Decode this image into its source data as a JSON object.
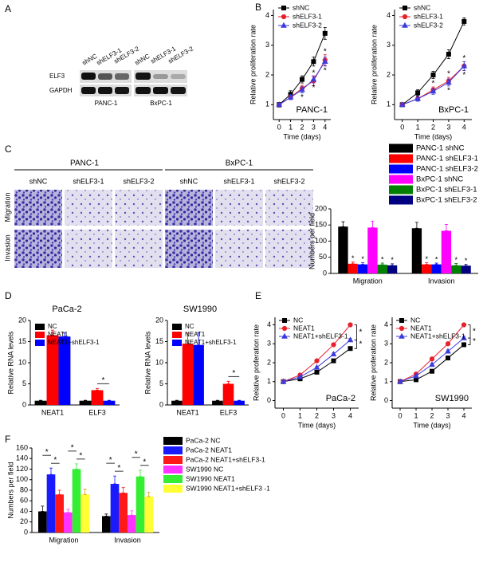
{
  "panel_labels": [
    "A",
    "B",
    "C",
    "D",
    "E",
    "F"
  ],
  "blot": {
    "lanes_1": [
      "shNC",
      "shELF3-1",
      "shELF3-2"
    ],
    "lanes_2": [
      "shNC",
      "shELF3-1",
      "shELF3-2"
    ],
    "rows": [
      "ELF3",
      "GAPDH"
    ],
    "cell_lines": [
      "PANC-1",
      "BxPC-1"
    ]
  },
  "micrographs": {
    "groups": [
      "PANC-1",
      "BxPC-1"
    ],
    "columns": [
      "shNC",
      "shELF3-1",
      "shELF3-2",
      "shNC",
      "shELF3-1",
      "shELF3-2"
    ],
    "rows": [
      "Migration",
      "Invasion"
    ]
  },
  "chart_data": [
    {
      "type": "line",
      "title": "PANC-1",
      "xlabel": "Time (days)",
      "ylabel": "Relative proliferation rate",
      "x": [
        0,
        1,
        2,
        3,
        4
      ],
      "xlim": [
        -0.5,
        4.5
      ],
      "xticks": [
        0,
        1,
        2,
        3,
        4
      ],
      "ylim": [
        0.5,
        4.2
      ],
      "yticks": [
        1,
        2,
        3,
        4
      ],
      "series": [
        {
          "name": "shNC",
          "color": "#000000",
          "marker": "square",
          "values": [
            1,
            1.35,
            1.85,
            2.45,
            3.4
          ],
          "errors": [
            0.08,
            0.12,
            0.12,
            0.15,
            0.2
          ]
        },
        {
          "name": "shELF3-1",
          "color": "#e8202a",
          "marker": "circle",
          "values": [
            1,
            1.25,
            1.55,
            1.8,
            2.5
          ],
          "errors": [
            0.06,
            0.08,
            0.1,
            0.15,
            0.18
          ],
          "significance": [
            null,
            null,
            "*",
            "*",
            "*"
          ]
        },
        {
          "name": "shELF3-2",
          "color": "#3b3bdf",
          "marker": "triangle",
          "values": [
            1,
            1.25,
            1.5,
            1.85,
            2.45
          ],
          "errors": [
            0.06,
            0.08,
            0.1,
            0.12,
            0.15
          ],
          "significance": [
            null,
            null,
            "*",
            "*",
            "*"
          ]
        }
      ]
    },
    {
      "type": "line",
      "title": "BxPC-1",
      "xlabel": "Time (days)",
      "ylabel": "Relative proliferation rate",
      "x": [
        0,
        1,
        2,
        3,
        4
      ],
      "xlim": [
        -0.5,
        4.5
      ],
      "xticks": [
        0,
        1,
        2,
        3,
        4
      ],
      "ylim": [
        0.5,
        4.2
      ],
      "yticks": [
        1,
        2,
        3,
        4
      ],
      "series": [
        {
          "name": "shNC",
          "color": "#000000",
          "marker": "square",
          "values": [
            1,
            1.4,
            2.0,
            2.7,
            3.8
          ],
          "errors": [
            0.06,
            0.1,
            0.12,
            0.15,
            0.12
          ]
        },
        {
          "name": "shELF3-1",
          "color": "#e8202a",
          "marker": "circle",
          "values": [
            1,
            1.2,
            1.5,
            1.8,
            2.3
          ],
          "errors": [
            0.05,
            0.08,
            0.1,
            0.12,
            0.15
          ],
          "significance": [
            null,
            null,
            "*",
            "*",
            "*"
          ]
        },
        {
          "name": "shELF3-2",
          "color": "#3b3bdf",
          "marker": "triangle",
          "values": [
            1,
            1.2,
            1.45,
            1.75,
            2.3
          ],
          "errors": [
            0.05,
            0.08,
            0.1,
            0.12,
            0.15
          ],
          "significance": [
            null,
            null,
            null,
            "*",
            "*"
          ]
        }
      ]
    },
    {
      "type": "bar",
      "ylabel": "Numbers per field",
      "categories": [
        "Migration",
        "Invasion"
      ],
      "ylim": [
        0,
        200
      ],
      "yticks": [
        0,
        50,
        100,
        150,
        200
      ],
      "series": [
        {
          "name": "PANC-1 shNC",
          "color": "#000000",
          "values": [
            145,
            140
          ],
          "errors": [
            15,
            18
          ]
        },
        {
          "name": "PANC-1 shELF3-1",
          "color": "#ff0000",
          "values": [
            30,
            28
          ],
          "errors": [
            5,
            5
          ],
          "significance": [
            "*",
            "*"
          ]
        },
        {
          "name": "PANC-1 shELF3-2",
          "color": "#0000ff",
          "values": [
            28,
            28
          ],
          "errors": [
            5,
            4
          ],
          "significance": [
            "*",
            "*"
          ]
        },
        {
          "name": "BxPC-1 shNC",
          "color": "#ff00ff",
          "values": [
            142,
            132
          ],
          "errors": [
            20,
            20
          ]
        },
        {
          "name": "BxPC-1 shELF3-1",
          "color": "#008000",
          "values": [
            27,
            25
          ],
          "errors": [
            5,
            6
          ],
          "significance": [
            "*",
            "*"
          ]
        },
        {
          "name": "BxPC-1 shELF3-2",
          "color": "#000080",
          "values": [
            25,
            24
          ],
          "errors": [
            5,
            4
          ],
          "significance": [
            "*",
            "*"
          ]
        }
      ]
    },
    {
      "type": "bar",
      "title": "PaCa-2",
      "ylabel": "Relative RNA levels",
      "categories": [
        "NEAT1",
        "ELF3"
      ],
      "ylim": [
        0,
        20
      ],
      "yticks": [
        0,
        5,
        10,
        15,
        20
      ],
      "series": [
        {
          "name": "NC",
          "color": "#000000",
          "values": [
            1,
            1
          ],
          "errors": [
            0.1,
            0.1
          ]
        },
        {
          "name": "NEAT1",
          "color": "#ff0000",
          "values": [
            16.5,
            3.5
          ],
          "errors": [
            1.2,
            0.4
          ]
        },
        {
          "name": "NEAT1+shELF3-1",
          "color": "#0000ff",
          "values": [
            16.2,
            1
          ],
          "errors": [
            0.8,
            0.1
          ]
        }
      ],
      "comparisons": [
        {
          "category": "ELF3",
          "between": [
            "NEAT1",
            "NEAT1+shELF3-1"
          ],
          "text": "*"
        }
      ]
    },
    {
      "type": "bar",
      "title": "SW1990",
      "ylabel": "Relative RNA levels",
      "categories": [
        "NEAT1",
        "ELF3"
      ],
      "ylim": [
        0,
        20
      ],
      "yticks": [
        0,
        5,
        10,
        15,
        20
      ],
      "series": [
        {
          "name": "NC",
          "color": "#000000",
          "values": [
            1,
            1
          ],
          "errors": [
            0.1,
            0.1
          ]
        },
        {
          "name": "NEAT1",
          "color": "#ff0000",
          "values": [
            14.5,
            5
          ],
          "errors": [
            2.5,
            0.6
          ]
        },
        {
          "name": "NEAT1+shELF3-1",
          "color": "#0000ff",
          "values": [
            14.2,
            1
          ],
          "errors": [
            2.8,
            0.1
          ]
        }
      ],
      "comparisons": [
        {
          "category": "ELF3",
          "between": [
            "NEAT1",
            "NEAT1+shELF3-1"
          ],
          "text": "*"
        }
      ]
    },
    {
      "type": "line",
      "title": "PaCa-2",
      "xlabel": "Time (days)",
      "ylabel": "Relative proferation rate",
      "x": [
        0,
        1,
        2,
        3,
        4
      ],
      "xlim": [
        -0.5,
        4.5
      ],
      "xticks": [
        0,
        1,
        2,
        3,
        4
      ],
      "ylim": [
        -0.4,
        4.4
      ],
      "yticks": [
        0,
        1,
        2,
        3,
        4
      ],
      "series": [
        {
          "name": "NC",
          "color": "#000000",
          "marker": "square",
          "values": [
            1,
            1.15,
            1.5,
            2.1,
            2.75
          ],
          "errors": [
            0.05,
            0.05,
            0.06,
            0.08,
            0.08
          ]
        },
        {
          "name": "NEAT1",
          "color": "#e8202a",
          "marker": "circle",
          "values": [
            1,
            1.35,
            2.1,
            2.95,
            4.0
          ],
          "errors": [
            0.05,
            0.06,
            0.06,
            0.08,
            0.08
          ]
        },
        {
          "name": "NEAT1+shELF3-1",
          "color": "#3b3bdf",
          "marker": "triangle",
          "values": [
            1,
            1.25,
            1.75,
            2.45,
            3.2
          ],
          "errors": [
            0.05,
            0.05,
            0.06,
            0.08,
            0.08
          ]
        }
      ],
      "comparisons": [
        {
          "between": [
            "NEAT1",
            "NEAT1+shELF3-1"
          ],
          "text": "*"
        },
        {
          "between": [
            "NEAT1+shELF3-1",
            "NC"
          ],
          "text": "*"
        }
      ]
    },
    {
      "type": "line",
      "title": "SW1990",
      "xlabel": "Time (days)",
      "ylabel": "Relative proferation rate",
      "x": [
        0,
        1,
        2,
        3,
        4
      ],
      "xlim": [
        -0.5,
        4.5
      ],
      "xticks": [
        0,
        1,
        2,
        3,
        4
      ],
      "ylim": [
        -0.4,
        4.4
      ],
      "yticks": [
        0,
        1,
        2,
        3,
        4
      ],
      "series": [
        {
          "name": "NC",
          "color": "#000000",
          "marker": "square",
          "values": [
            1,
            1.1,
            1.55,
            2.25,
            2.95
          ],
          "errors": [
            0.05,
            0.05,
            0.06,
            0.08,
            0.08
          ]
        },
        {
          "name": "NEAT1",
          "color": "#e8202a",
          "marker": "circle",
          "values": [
            1,
            1.4,
            2.2,
            3.0,
            4.0
          ],
          "errors": [
            0.05,
            0.06,
            0.08,
            0.08,
            0.08
          ]
        },
        {
          "name": "NEAT1+shELF3-1",
          "color": "#3b3bdf",
          "marker": "triangle",
          "values": [
            1,
            1.3,
            1.9,
            2.6,
            3.3
          ],
          "errors": [
            0.05,
            0.05,
            0.06,
            0.08,
            0.08
          ]
        }
      ],
      "comparisons": [
        {
          "between": [
            "NEAT1",
            "NEAT1+shELF3-1"
          ],
          "text": "*"
        },
        {
          "between": [
            "NEAT1+shELF3-1",
            "NC"
          ],
          "text": "*"
        }
      ]
    },
    {
      "type": "bar",
      "ylabel": "Numbers per field",
      "categories": [
        "Migration",
        "Invasion"
      ],
      "ylim": [
        0,
        160
      ],
      "yticks": [
        0,
        20,
        40,
        60,
        80,
        100,
        120,
        140,
        160
      ],
      "series": [
        {
          "name": "PaCa-2 NC",
          "color": "#000000",
          "values": [
            40,
            31
          ],
          "errors": [
            10,
            4
          ]
        },
        {
          "name": "PaCa-2 NEAT1",
          "color": "#1a1aff",
          "values": [
            110,
            92
          ],
          "errors": [
            12,
            15
          ]
        },
        {
          "name": "PaCa-2 NEAT1+shELF3-1",
          "color": "#ff1a1a",
          "values": [
            72,
            75
          ],
          "errors": [
            8,
            10
          ]
        },
        {
          "name": "SW1990 NC",
          "color": "#ff33ff",
          "values": [
            38,
            33
          ],
          "errors": [
            6,
            8
          ]
        },
        {
          "name": "SW1990 NEAT1",
          "color": "#33ee33",
          "values": [
            120,
            106
          ],
          "errors": [
            10,
            12
          ]
        },
        {
          "name": "SW1990 NEAT1+shELF3 -1",
          "color": "#ffff33",
          "values": [
            72,
            68
          ],
          "errors": [
            10,
            8
          ]
        }
      ],
      "comparisons": [
        {
          "category": "Migration",
          "between": [
            "PaCa-2 NEAT1",
            "PaCa-2 NEAT1+shELF3-1"
          ],
          "text": "*"
        },
        {
          "category": "Migration",
          "between": [
            "PaCa-2 NC",
            "PaCa-2 NEAT1"
          ],
          "text": "*"
        },
        {
          "category": "Migration",
          "between": [
            "SW1990 NEAT1",
            "SW1990 NEAT1+shELF3 -1"
          ],
          "text": "*"
        },
        {
          "category": "Migration",
          "between": [
            "SW1990 NC",
            "SW1990 NEAT1"
          ],
          "text": "*"
        },
        {
          "category": "Invasion",
          "between": [
            "PaCa-2 NEAT1",
            "PaCa-2 NEAT1+shELF3-1"
          ],
          "text": "*"
        },
        {
          "category": "Invasion",
          "between": [
            "PaCa-2 NC",
            "PaCa-2 NEAT1"
          ],
          "text": "*"
        },
        {
          "category": "Invasion",
          "between": [
            "SW1990 NEAT1",
            "SW1990 NEAT1+shELF3 -1"
          ],
          "text": "*"
        },
        {
          "category": "Invasion",
          "between": [
            "SW1990 NC",
            "SW1990 NEAT1"
          ],
          "text": "*"
        }
      ]
    }
  ]
}
